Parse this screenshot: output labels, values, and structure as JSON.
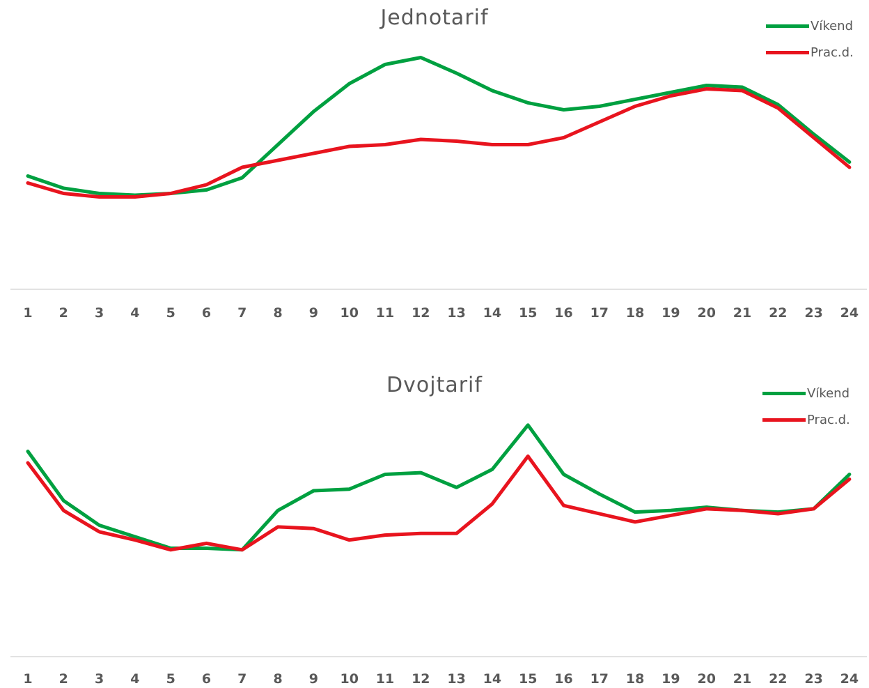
{
  "chart_data": [
    {
      "type": "line",
      "title": "Jednotarif",
      "categories": [
        "1",
        "2",
        "3",
        "4",
        "5",
        "6",
        "7",
        "8",
        "9",
        "10",
        "11",
        "12",
        "13",
        "14",
        "15",
        "16",
        "17",
        "18",
        "19",
        "20",
        "21",
        "22",
        "23",
        "24"
      ],
      "series": [
        {
          "name": "Víkend",
          "color": "#00a040",
          "values": [
            65,
            58,
            55,
            54,
            55,
            57,
            64,
            83,
            102,
            118,
            129,
            133,
            124,
            114,
            107,
            103,
            105,
            109,
            113,
            117,
            116,
            106,
            89,
            73
          ]
        },
        {
          "name": "Prac.d.",
          "color": "#e8141e",
          "values": [
            61,
            55,
            53,
            53,
            55,
            60,
            70,
            74,
            78,
            82,
            83,
            86,
            85,
            83,
            83,
            87,
            96,
            105,
            111,
            115,
            114,
            104,
            87,
            70
          ]
        }
      ],
      "ylim": [
        0,
        150
      ],
      "grid": false,
      "legend": "top-right"
    },
    {
      "type": "line",
      "title": "Dvojtarif",
      "categories": [
        "1",
        "2",
        "3",
        "4",
        "5",
        "6",
        "7",
        "8",
        "9",
        "10",
        "11",
        "12",
        "13",
        "14",
        "15",
        "16",
        "17",
        "18",
        "19",
        "20",
        "21",
        "22",
        "23",
        "24"
      ],
      "series": [
        {
          "name": "Víkend",
          "color": "#00a040",
          "values": [
            125,
            95,
            80,
            73,
            66,
            66,
            65,
            89,
            101,
            102,
            111,
            112,
            103,
            114,
            141,
            111,
            99,
            88,
            89,
            91,
            89,
            88,
            90,
            111
          ]
        },
        {
          "name": "Prac.d.",
          "color": "#e8141e",
          "values": [
            118,
            89,
            76,
            71,
            65,
            69,
            65,
            79,
            78,
            71,
            74,
            75,
            75,
            93,
            122,
            92,
            87,
            82,
            86,
            90,
            89,
            87,
            90,
            108
          ]
        }
      ],
      "ylim": [
        0,
        160
      ],
      "grid": false,
      "legend": "top-right"
    }
  ]
}
